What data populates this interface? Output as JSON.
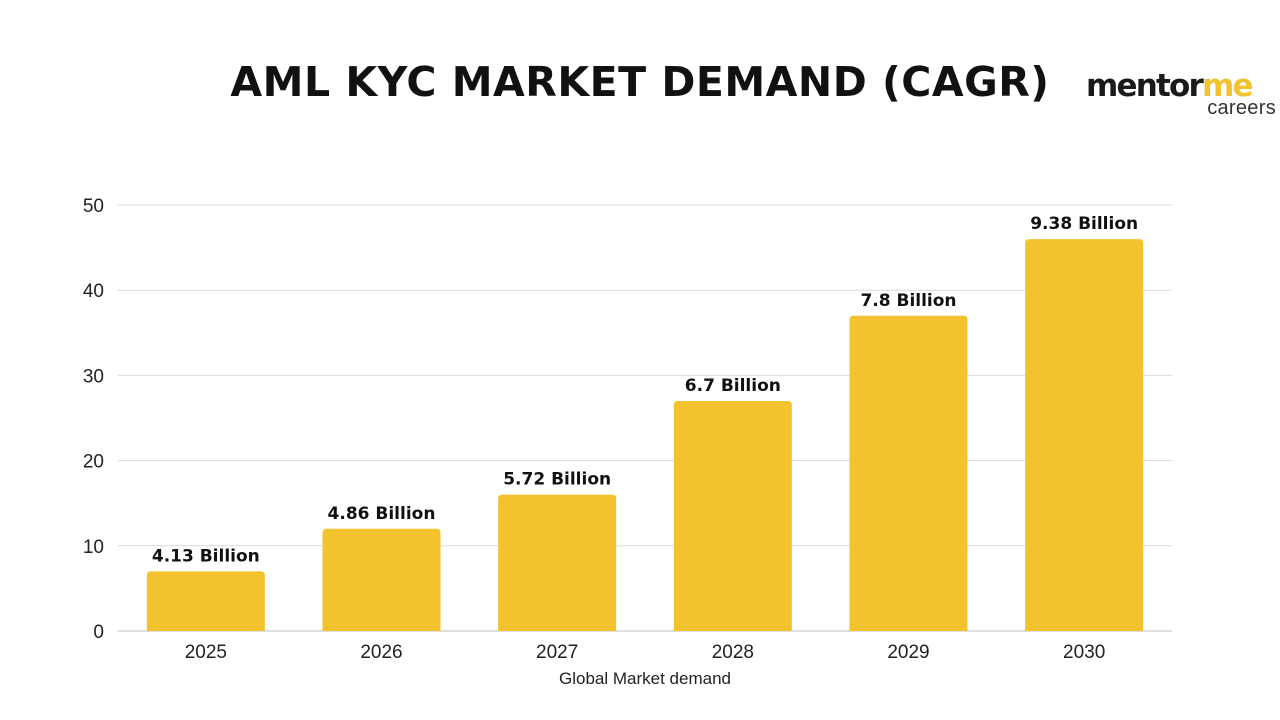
{
  "header": {
    "title": "AML KYC MARKET DEMAND (CAGR)"
  },
  "logo": {
    "name_part_a": "mentor",
    "name_part_b": "me",
    "subtitle": "careers"
  },
  "colors": {
    "bar": "#f3c22f",
    "gridline": "#d9d9d9",
    "axis": "#bfbfbf",
    "logo_accent": "#f3c22f"
  },
  "chart_data": {
    "type": "bar",
    "title": "AML KYC MARKET DEMAND (CAGR)",
    "xlabel": "Global Market demand",
    "ylabel": "",
    "categories": [
      "2025",
      "2026",
      "2027",
      "2028",
      "2029",
      "2030"
    ],
    "values": [
      7,
      12,
      16,
      27,
      37,
      46
    ],
    "data_labels": [
      "4.13 Billion",
      "4.86 Billion",
      "5.72 Billion",
      "6.7 Billion",
      "7.8 Billion",
      "9.38 Billion"
    ],
    "ylim": [
      0,
      50
    ],
    "yticks": [
      0,
      10,
      20,
      30,
      40,
      50
    ],
    "grid": true,
    "legend": "none"
  }
}
